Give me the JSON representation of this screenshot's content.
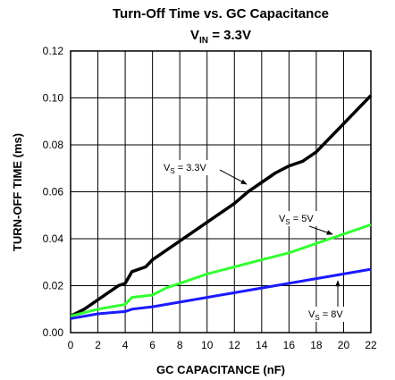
{
  "chart_data": {
    "type": "line",
    "title": "Turn-Off Time vs. GC Capacitance",
    "subtitle": {
      "text": "V",
      "sub": "IN",
      "rest": " = 3.3V"
    },
    "xlabel": "GC CAPACITANCE (nF)",
    "ylabel": "TURN-OFF TIME (ms)",
    "xlim": [
      0,
      22
    ],
    "ylim": [
      0,
      0.12
    ],
    "xticks": [
      0,
      2,
      4,
      6,
      8,
      10,
      12,
      14,
      16,
      18,
      20,
      22
    ],
    "yticks": [
      {
        "value": 0,
        "label": "0.00"
      },
      {
        "value": 0.02,
        "label": "0.02"
      },
      {
        "value": 0.04,
        "label": "0.04"
      },
      {
        "value": 0.06,
        "label": "0.06"
      },
      {
        "value": 0.08,
        "label": "0.08"
      },
      {
        "value": 0.1,
        "label": "0.10"
      },
      {
        "value": 0.12,
        "label": "0.12"
      }
    ],
    "grid": true,
    "series": [
      {
        "label": {
          "text": "V",
          "sub": "S",
          "rest": " = 3.3V"
        },
        "color": "#000000",
        "x": [
          0,
          1,
          2,
          3,
          3.5,
          4,
          4.5,
          5,
          5.5,
          6,
          7,
          8,
          9,
          10,
          11,
          12,
          13,
          14,
          15,
          16,
          17,
          18,
          19,
          20,
          21,
          22
        ],
        "values": [
          0.007,
          0.01,
          0.014,
          0.018,
          0.02,
          0.021,
          0.026,
          0.027,
          0.028,
          0.031,
          0.035,
          0.039,
          0.043,
          0.047,
          0.051,
          0.055,
          0.06,
          0.064,
          0.068,
          0.071,
          0.073,
          0.077,
          0.083,
          0.089,
          0.095,
          0.101
        ]
      },
      {
        "label": {
          "text": "V",
          "sub": "S",
          "rest": " = 5V"
        },
        "color": "#33ff33",
        "x": [
          0,
          2,
          4,
          4.5,
          6,
          7,
          8,
          10,
          12,
          14,
          16,
          18,
          20,
          22
        ],
        "values": [
          0.007,
          0.01,
          0.012,
          0.015,
          0.016,
          0.019,
          0.021,
          0.025,
          0.028,
          0.031,
          0.034,
          0.038,
          0.042,
          0.046
        ]
      },
      {
        "label": {
          "text": "V",
          "sub": "S",
          "rest": " = 8V"
        },
        "color": "#1a1aff",
        "x": [
          0,
          2,
          4,
          4.5,
          6,
          8,
          10,
          12,
          14,
          16,
          18,
          20,
          22
        ],
        "values": [
          0.006,
          0.008,
          0.009,
          0.01,
          0.011,
          0.013,
          0.015,
          0.017,
          0.019,
          0.021,
          0.023,
          0.025,
          0.027
        ]
      }
    ]
  }
}
